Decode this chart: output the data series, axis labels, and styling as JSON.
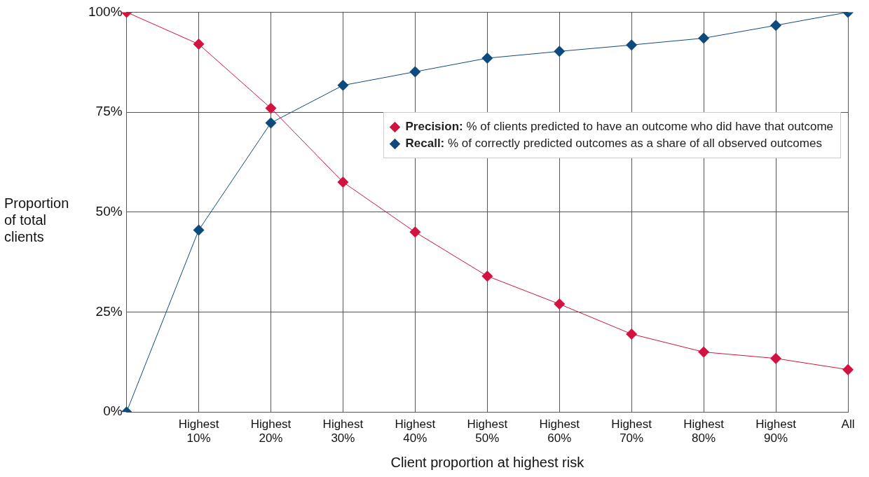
{
  "chart_data": {
    "type": "line",
    "xlabel": "Client proportion at highest risk",
    "ylabel": "Proportion of total clients",
    "categories": [
      null,
      "Highest 10%",
      "Highest 20%",
      "Highest 30%",
      "Highest 40%",
      "Highest 50%",
      "Highest 60%",
      "Highest 70%",
      "Highest 80%",
      "Highest 90%",
      "All"
    ],
    "series": [
      {
        "name": "Precision: % of clients predicted to have an outcome who did have that outcome",
        "color": "#d4123f",
        "values": [
          100,
          92,
          76,
          57.5,
          45,
          34,
          27,
          19.5,
          15,
          13.4,
          10.6
        ]
      },
      {
        "name": "Recall: % of correctly predicted outcomes as a share of all observed outcomes",
        "color": "#0f4a7f",
        "values": [
          0,
          45.5,
          72.3,
          81.7,
          85.1,
          88.5,
          90.2,
          91.8,
          93.5,
          96.7,
          100
        ]
      }
    ],
    "ylim": [
      0,
      100
    ],
    "yticks": [
      {
        "value": 0,
        "label": "0%"
      },
      {
        "value": 25,
        "label": "25%"
      },
      {
        "value": 50,
        "label": "50%"
      },
      {
        "value": 75,
        "label": "75%"
      },
      {
        "value": 100,
        "label": "100%"
      }
    ],
    "grid": true,
    "legend": "top right",
    "marker": "diamond",
    "line_style": "solid"
  }
}
